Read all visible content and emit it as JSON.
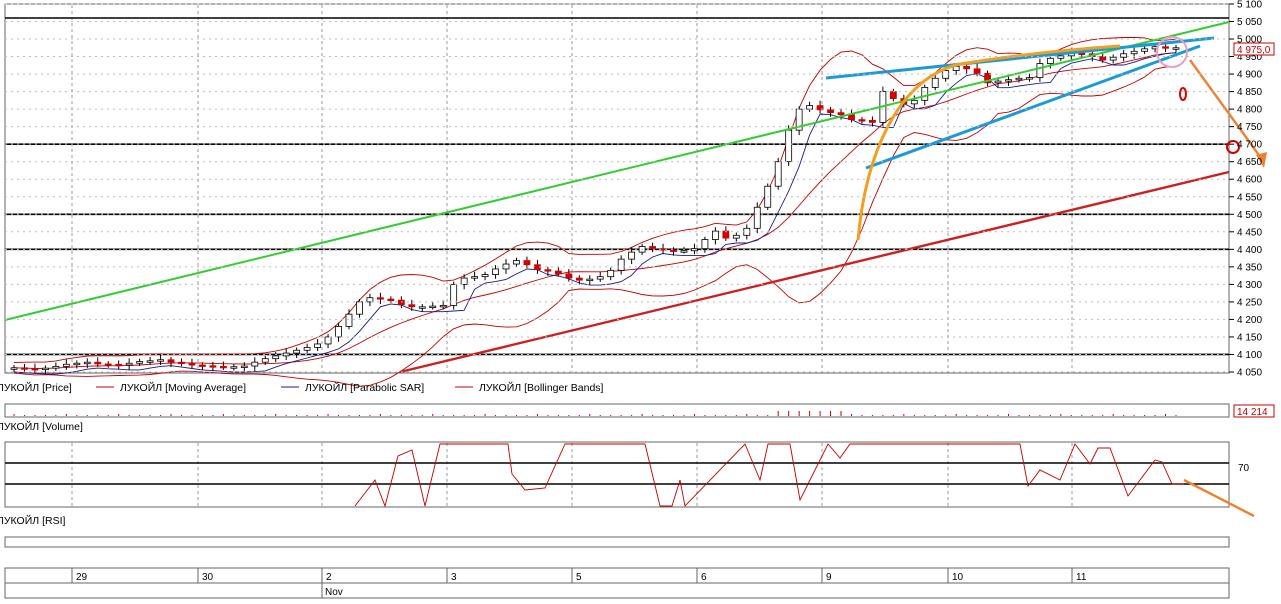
{
  "chart_data": [
    {
      "type": "candlestick",
      "panel": "price",
      "y_ticks": [
        "5 100",
        "5 050",
        "5 000",
        "4 950",
        "4 900",
        "4 850",
        "4 800",
        "4 750",
        "4 700",
        "4 650",
        "4 600",
        "4 550",
        "4 500",
        "4 450",
        "4 400",
        "4 350",
        "4 300",
        "4 250",
        "4 200",
        "4 150",
        "4 100",
        "4 050"
      ],
      "ylim": [
        4050,
        5100
      ],
      "last_price_label": "4 975,0",
      "horizontal_levels": [
        5060,
        4700,
        4500,
        4400,
        4100
      ],
      "legend": [
        {
          "label": "ЛУКОЙЛ [Price]",
          "color": "#c00000"
        },
        {
          "label": "ЛУКОЙЛ [Moving Average]",
          "color": "#c00000"
        },
        {
          "label": "ЛУКОЙЛ [Parabolic SAR]",
          "color": "#1a1a8c"
        },
        {
          "label": "ЛУКОЙЛ [Bollinger Bands]",
          "color": "#c00000"
        }
      ],
      "closes": [
        4062,
        4060,
        4058,
        4061,
        4066,
        4072,
        4075,
        4078,
        4073,
        4072,
        4070,
        4075,
        4080,
        4082,
        4085,
        4078,
        4074,
        4070,
        4068,
        4066,
        4064,
        4065,
        4067,
        4078,
        4088,
        4096,
        4104,
        4112,
        4120,
        4130,
        4150,
        4180,
        4215,
        4250,
        4262,
        4258,
        4255,
        4242,
        4236,
        4236,
        4238,
        4240,
        4300,
        4318,
        4322,
        4328,
        4344,
        4358,
        4368,
        4356,
        4342,
        4338,
        4330,
        4318,
        4312,
        4315,
        4322,
        4340,
        4372,
        4392,
        4408,
        4402,
        4398,
        4396,
        4396,
        4402,
        4428,
        4452,
        4432,
        4440,
        4460,
        4520,
        4580,
        4650,
        4740,
        4800,
        4810,
        4798,
        4790,
        4784,
        4770,
        4768,
        4762,
        4850,
        4830,
        4815,
        4825,
        4862,
        4888,
        4910,
        4922,
        4915,
        4902,
        4875,
        4880,
        4884,
        4888,
        4890,
        4930,
        4945,
        4952,
        4960,
        4958,
        4950,
        4940,
        4948,
        4958,
        4965,
        4972,
        4978,
        4975,
        4975
      ]
    },
    {
      "type": "bar",
      "panel": "volume",
      "label": "ЛУКОЙЛ [Volume]",
      "last_value_label": "14 214"
    },
    {
      "type": "line",
      "panel": "rsi",
      "label": "ЛУКОЙЛ [RSI]",
      "level_label": "70",
      "levels": [
        70,
        30
      ]
    }
  ],
  "x_axis": {
    "day_labels": [
      "29",
      "30",
      "2",
      "3",
      "5",
      "6",
      "9",
      "10",
      "11"
    ],
    "month_label": "Nov"
  },
  "annotation_colors": {
    "green_trend": "#33cc33",
    "red_trend": "#cc2020",
    "blue_lines": "#1b9ad6",
    "orange": "#f0a020",
    "arrow": "#f08030"
  }
}
